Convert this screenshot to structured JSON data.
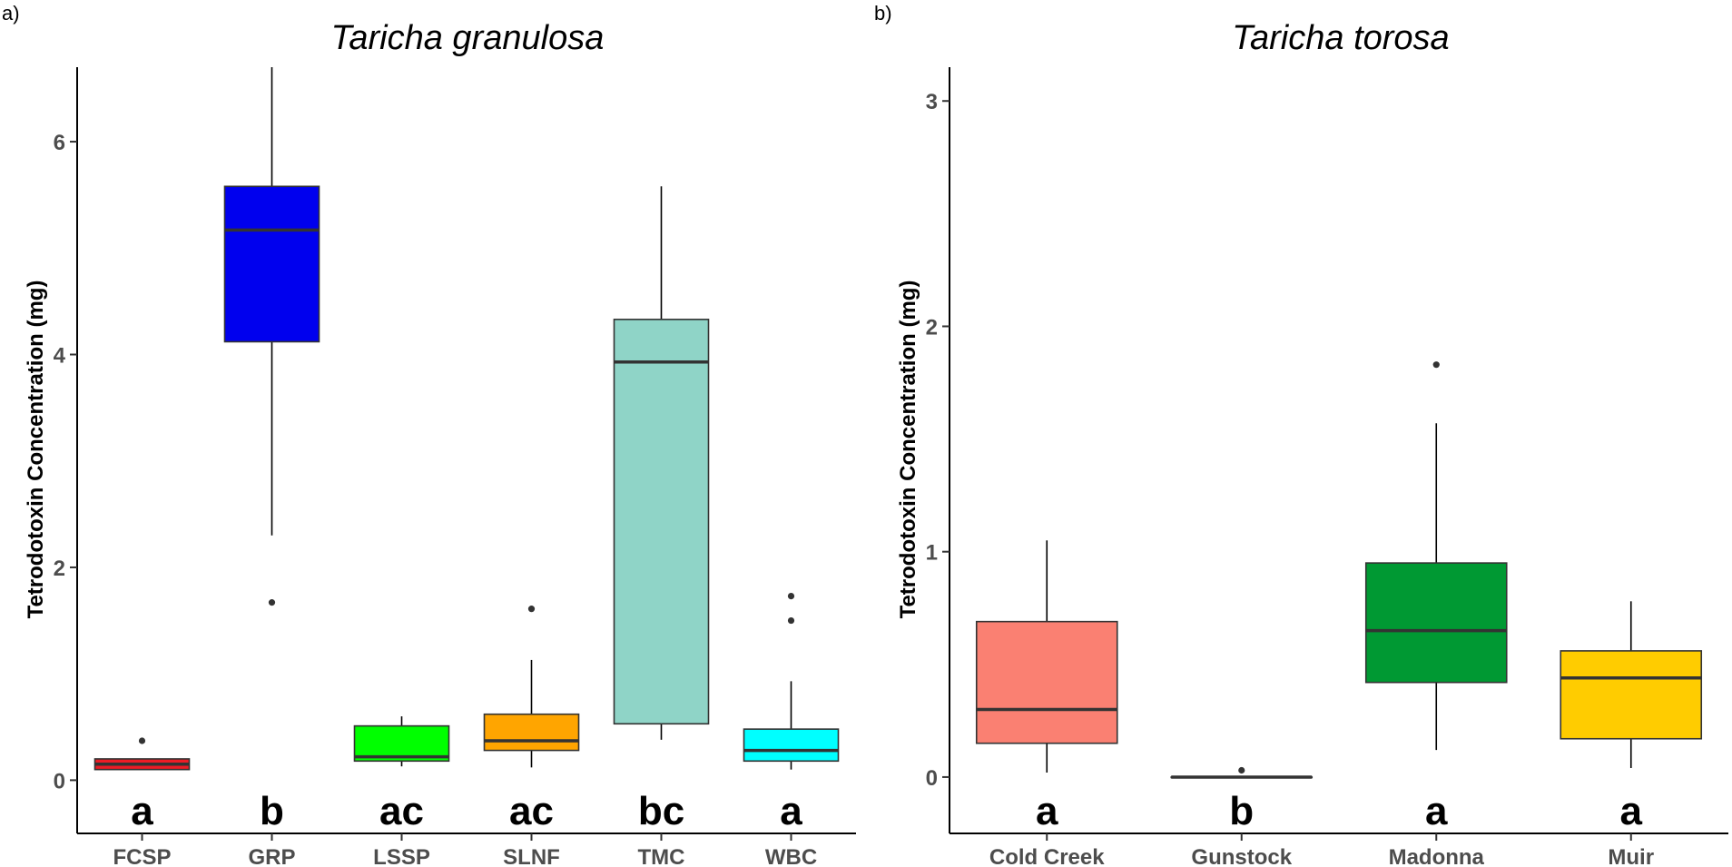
{
  "chart_data": [
    {
      "type": "box",
      "panel_label": "a)",
      "title": "Taricha granulosa",
      "xlabel": "",
      "ylabel": "Tetrodotoxin Concentration (mg)",
      "ylim": [
        -0.5,
        6.7
      ],
      "yticks": [
        0,
        2,
        4,
        6
      ],
      "categories": [
        "FCSP",
        "GRP",
        "LSSP",
        "SLNF",
        "TMC",
        "WBC"
      ],
      "letters": [
        "a",
        "b",
        "ac",
        "ac",
        "bc",
        "a"
      ],
      "colors": [
        "#ee1c25",
        "#0000ee",
        "#00ff00",
        "#ffa500",
        "#8fd4c7",
        "#00ffff"
      ],
      "boxes": [
        {
          "whisker_low": 0.1,
          "q1": 0.1,
          "median": 0.15,
          "q3": 0.2,
          "whisker_high": 0.2,
          "outliers": [
            0.37
          ]
        },
        {
          "whisker_low": 2.3,
          "q1": 4.12,
          "median": 5.17,
          "q3": 5.58,
          "whisker_high": 6.7,
          "outliers": [
            1.67
          ]
        },
        {
          "whisker_low": 0.13,
          "q1": 0.18,
          "median": 0.22,
          "q3": 0.51,
          "whisker_high": 0.6,
          "outliers": []
        },
        {
          "whisker_low": 0.12,
          "q1": 0.28,
          "median": 0.37,
          "q3": 0.62,
          "whisker_high": 1.13,
          "outliers": [
            1.61
          ]
        },
        {
          "whisker_low": 0.38,
          "q1": 0.53,
          "median": 3.93,
          "q3": 4.33,
          "whisker_high": 5.58,
          "outliers": []
        },
        {
          "whisker_low": 0.1,
          "q1": 0.18,
          "median": 0.28,
          "q3": 0.48,
          "whisker_high": 0.93,
          "outliers": [
            1.5,
            1.73
          ]
        }
      ]
    },
    {
      "type": "box",
      "panel_label": "b)",
      "title": "Taricha torosa",
      "xlabel": "",
      "ylabel": "Tetrodotoxin Concentration (mg)",
      "ylim": [
        -0.25,
        3.15
      ],
      "yticks": [
        0,
        1,
        2,
        3
      ],
      "categories": [
        "Cold Creek",
        "Gunstock",
        "Madonna",
        "Muir"
      ],
      "letters": [
        "a",
        "b",
        "a",
        "a"
      ],
      "colors": [
        "#fa8072",
        "#000000",
        "#009933",
        "#ffcc00"
      ],
      "boxes": [
        {
          "whisker_low": 0.02,
          "q1": 0.15,
          "median": 0.3,
          "q3": 0.69,
          "whisker_high": 1.05,
          "outliers": []
        },
        {
          "whisker_low": 0.0,
          "q1": 0.0,
          "median": 0.0,
          "q3": 0.0,
          "whisker_high": 0.0,
          "outliers": [
            0.03
          ]
        },
        {
          "whisker_low": 0.12,
          "q1": 0.42,
          "median": 0.65,
          "q3": 0.95,
          "whisker_high": 1.57,
          "outliers": [
            1.83
          ]
        },
        {
          "whisker_low": 0.04,
          "q1": 0.17,
          "median": 0.44,
          "q3": 0.56,
          "whisker_high": 0.78,
          "outliers": []
        }
      ]
    }
  ]
}
